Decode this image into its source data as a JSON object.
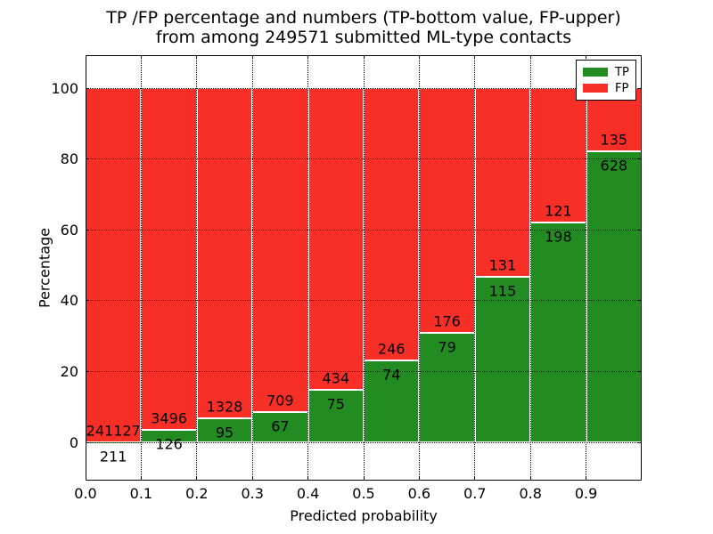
{
  "chart_data": {
    "type": "bar",
    "stacked": true,
    "normalized": "each bar totals 100 percent",
    "title_line1": "TP /FP percentage and numbers (TP-bottom value, FP-upper)",
    "title_line2": "from among 249571 submitted ML-type contacts",
    "xlabel": "Predicted probability",
    "ylabel": "Percentage",
    "x_ticks": [
      "0.0",
      "0.1",
      "0.2",
      "0.3",
      "0.4",
      "0.5",
      "0.6",
      "0.7",
      "0.8",
      "0.9"
    ],
    "y_ticks": [
      "0",
      "20",
      "40",
      "60",
      "80",
      "100"
    ],
    "x_range": [
      0.0,
      1.0
    ],
    "y_range": [
      -10.8,
      109.4
    ],
    "grid": "dotted",
    "categories": [
      "0.0-0.1",
      "0.1-0.2",
      "0.2-0.3",
      "0.3-0.4",
      "0.4-0.5",
      "0.5-0.6",
      "0.6-0.7",
      "0.7-0.8",
      "0.8-0.9",
      "0.9-1.0"
    ],
    "series": [
      {
        "name": "TP",
        "color": "#228b22",
        "values": [
          211,
          126,
          95,
          67,
          75,
          74,
          79,
          115,
          198,
          628
        ]
      },
      {
        "name": "FP",
        "color": "#f82f27",
        "values": [
          241127,
          3496,
          1328,
          709,
          434,
          246,
          176,
          131,
          121,
          135
        ]
      }
    ],
    "legend": {
      "position": "upper right",
      "entries": [
        {
          "label": "TP"
        },
        {
          "label": "FP"
        }
      ]
    }
  }
}
